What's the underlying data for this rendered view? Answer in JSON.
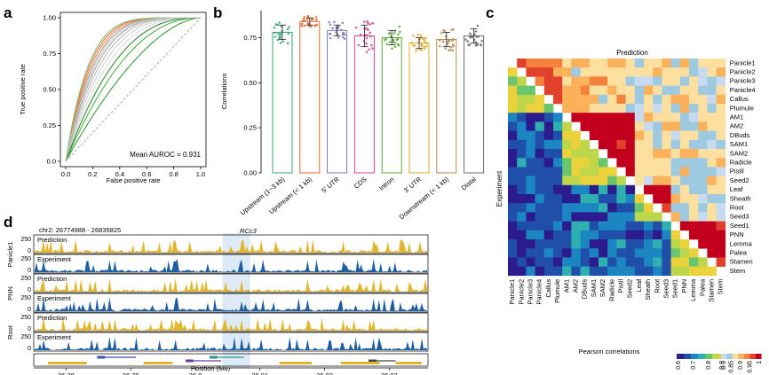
{
  "panel_labels": {
    "a": "a",
    "b": "b",
    "c": "c",
    "d": "d"
  },
  "chart_data": [
    {
      "id": "a",
      "type": "line",
      "xlabel": "False positive rate",
      "ylabel": "True positive rate",
      "xticks": [
        "0.0",
        "0.2",
        "0.4",
        "0.6",
        "0.8",
        "1.0"
      ],
      "yticks": [
        "0.0",
        "0.25",
        "0.50",
        "0.75",
        "1.00"
      ],
      "xlim": [
        0,
        1
      ],
      "ylim": [
        0,
        1
      ],
      "annotation": "Mean AUROC = 0.931",
      "curve_colors": [
        "#d9d9d9",
        "#cfcfcf",
        "#bdbdbd",
        "#a6a6a6",
        "#9e9e9e",
        "#f08a3c",
        "#e6734a",
        "#4daf4a",
        "#3c9a3c",
        "#7fbf7b",
        "#2e8b2e",
        "#c8c8c8"
      ],
      "curve_shapes": [
        3.0,
        3.4,
        3.8,
        4.2,
        4.8,
        5.2,
        5.6,
        2.2,
        1.7,
        6.0,
        2.6,
        4.5
      ]
    },
    {
      "id": "b",
      "type": "bar",
      "ylabel": "Correlations",
      "yticks": [
        "0.00",
        "0.25",
        "0.50",
        "0.75"
      ],
      "ylim": [
        0,
        0.9
      ],
      "categories": [
        "Upstream (1~3 kb)",
        "Upstream (< 1 kb)",
        "5' UTR",
        "CDS",
        "Intron",
        "3' UTR",
        "Downstream (< 1 kb)",
        "Distal"
      ],
      "values": [
        0.78,
        0.84,
        0.79,
        0.76,
        0.75,
        0.72,
        0.74,
        0.76
      ],
      "errors": [
        0.04,
        0.02,
        0.03,
        0.06,
        0.04,
        0.03,
        0.04,
        0.04
      ],
      "colors": [
        "#3aa37a",
        "#e2692e",
        "#7a76b8",
        "#d93f95",
        "#5aa83c",
        "#d9a825",
        "#b38a4e",
        "#6b6b6b"
      ]
    },
    {
      "id": "c",
      "type": "heatmap",
      "top_label": "Prediction",
      "side_label": "Experiment",
      "rows": [
        "Panicle1",
        "Panicle2",
        "Panicle3",
        "Panicle4",
        "Callus",
        "Plumule",
        "AM1",
        "AM2",
        "DBuds",
        "SAM1",
        "SAM2",
        "Radicle",
        "Pistil",
        "Seed2",
        "Leaf",
        "Sheath",
        "Root",
        "Seed3",
        "Seed1",
        "PNN",
        "Lemma",
        "Palea",
        "Stamen",
        "Stem"
      ],
      "cols": [
        "Panicle1",
        "Panicle2",
        "Panicle3",
        "Panicle4",
        "Callus",
        "Plumule",
        "AM1",
        "AM2",
        "DBuds",
        "SAM1",
        "SAM2",
        "Radicle",
        "Pistil",
        "Seed2",
        "Leaf",
        "Sheath",
        "Root",
        "Seed3",
        "Seed1",
        "PNN",
        "Lemma",
        "Palea",
        "Stamen",
        "Stem"
      ],
      "lower_legend": {
        "title": "Pearson correlations",
        "ticks": [
          "0.6",
          "0.7",
          "0.8",
          "0.9"
        ]
      },
      "upper_legend": {
        "ticks": [
          "0.8",
          "0.85",
          "0.9",
          "0.95",
          "1"
        ]
      },
      "legend_title": "Pearson correlations"
    },
    {
      "id": "d",
      "type": "area",
      "region": "chr2: 26774988 - 26835825",
      "highlight_label": "RCc3",
      "xlabel": "Position (Mb)",
      "xticks": [
        "26.78",
        "26.79",
        "26.8",
        "26.81",
        "26.82",
        "26.83"
      ],
      "xlim": [
        26.775,
        26.836
      ],
      "tracks": [
        {
          "tissue": "Panicle1",
          "label": "Prediction",
          "color": "#e3b52d",
          "seed": 11
        },
        {
          "tissue": "Panicle1",
          "label": "Experiment",
          "color": "#1f5fa3",
          "seed": 12
        },
        {
          "tissue": "PNN",
          "label": "Prediction",
          "color": "#e3b52d",
          "seed": 21
        },
        {
          "tissue": "PNN",
          "label": "Experiment",
          "color": "#1f5fa3",
          "seed": 22
        },
        {
          "tissue": "Root",
          "label": "Prediction",
          "color": "#e3b52d",
          "seed": 31
        },
        {
          "tissue": "Root",
          "label": "Experiment",
          "color": "#1f5fa3",
          "seed": 32
        }
      ],
      "tissues": [
        "Panicle1",
        "PNN",
        "Root"
      ],
      "yticks": [
        "0",
        "250"
      ]
    }
  ]
}
